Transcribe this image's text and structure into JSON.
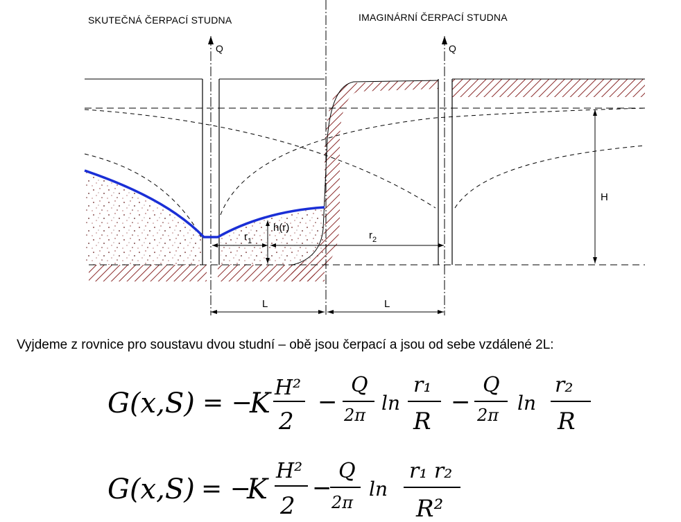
{
  "diagram": {
    "title_left": "SKUTEČNÁ ČERPACÍ  STUDNA",
    "title_right": "IMAGINÁRNÍ ČERPACÍ  STUDNA",
    "q_left": "Q",
    "q_right": "Q",
    "h_label": "H",
    "hr_label": "h(r)",
    "r1_label": "r",
    "r1_sub": "1",
    "r2_label": "r",
    "r2_sub": "2",
    "l_left": "L",
    "l_right": "L",
    "colors": {
      "water_table": "#1a2fd6",
      "hatch": "#8b2b2b",
      "line": "#000000"
    }
  },
  "text": {
    "sentence": "Vyjdeme z rovnice pro soustavu dvou studní – obě jsou čerpací a jsou od sebe vzdálené 2L:"
  },
  "equations": {
    "eq1": {
      "lhs": "G(x,S)",
      "eq": "= −",
      "k": "K",
      "h_num": "H²",
      "h_den": "2",
      "minus1": "−",
      "q1_num": "Q",
      "q1_den": "2π",
      "ln1": "ln",
      "r1_num": "r₁",
      "r1_den": "R",
      "minus2": "−",
      "q2_num": "Q",
      "q2_den": "2π",
      "ln2": "ln",
      "r2_num": "r₂",
      "r2_den": "R"
    },
    "eq2": {
      "lhs": "G(x,S)",
      "eq": "= −",
      "k": "K",
      "h_num": "H²",
      "h_den": "2",
      "minus1": "−",
      "q_num": "Q",
      "q_den": "2π",
      "ln": "ln",
      "r_num": "r₁ r₂",
      "r_den": "R²"
    }
  }
}
